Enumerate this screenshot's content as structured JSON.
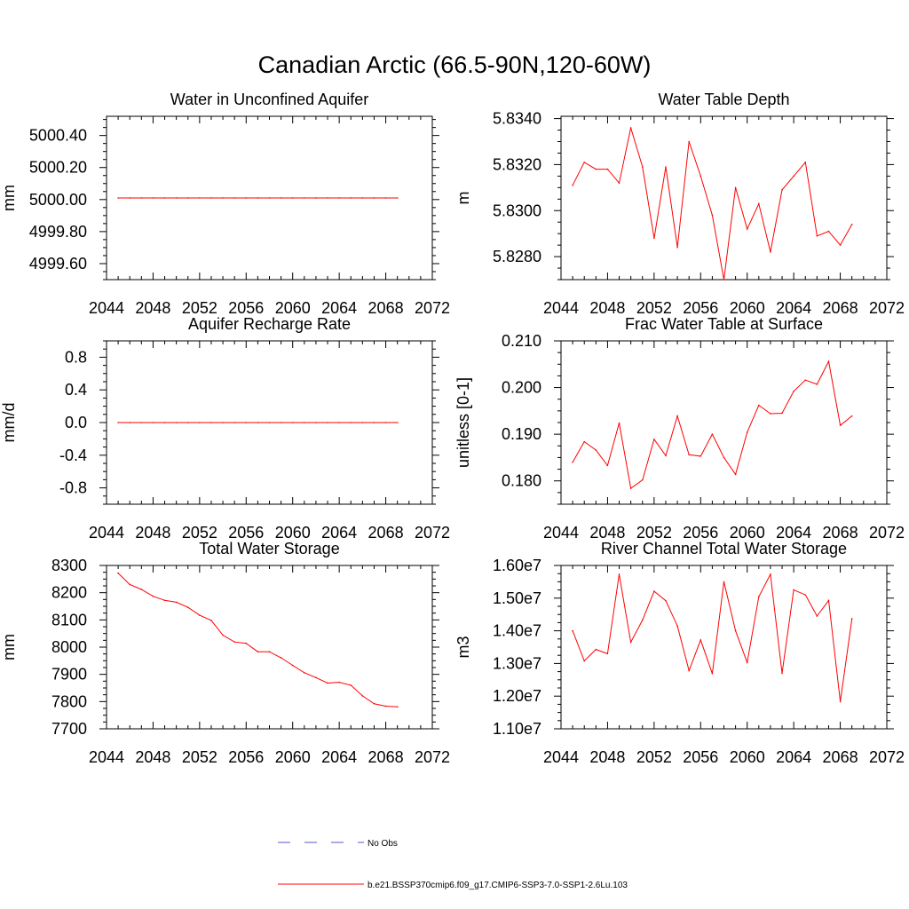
{
  "title": "Canadian Arctic (66.5-90N,120-60W)",
  "colors": {
    "series": "#ff0000",
    "obs": "#5555cc",
    "axis": "#000000"
  },
  "legend": {
    "obs_label": "No Obs",
    "model_label": "b.e21.BSSP370cmip6.f09_g17.CMIP6-SSP3-7.0-SSP1-2.6Lu.103"
  },
  "chart_data": [
    {
      "type": "line",
      "title": "Water in Unconfined Aquifer",
      "ylabel": "mm",
      "xlim": [
        2044,
        2072
      ],
      "ylim": [
        4999.5,
        5000.52
      ],
      "xticks": [
        "2044",
        "2048",
        "2052",
        "2056",
        "2060",
        "2064",
        "2068",
        "2072"
      ],
      "yticks": [
        {
          "v": 4999.6,
          "label": "4999.60"
        },
        {
          "v": 4999.8,
          "label": "4999.80"
        },
        {
          "v": 5000.0,
          "label": "5000.00"
        },
        {
          "v": 5000.2,
          "label": "5000.20"
        },
        {
          "v": 5000.4,
          "label": "5000.40"
        }
      ],
      "x": [
        2045,
        2046,
        2047,
        2048,
        2049,
        2050,
        2051,
        2052,
        2053,
        2054,
        2055,
        2056,
        2057,
        2058,
        2059,
        2060,
        2061,
        2062,
        2063,
        2064,
        2065,
        2066,
        2067,
        2068,
        2069
      ],
      "y": [
        5000.01,
        5000.01,
        5000.01,
        5000.01,
        5000.01,
        5000.01,
        5000.01,
        5000.01,
        5000.01,
        5000.01,
        5000.01,
        5000.01,
        5000.01,
        5000.01,
        5000.01,
        5000.01,
        5000.01,
        5000.01,
        5000.01,
        5000.01,
        5000.01,
        5000.01,
        5000.01,
        5000.01,
        5000.01
      ]
    },
    {
      "type": "line",
      "title": "Water Table Depth",
      "ylabel": "m",
      "xlim": [
        2044,
        2072
      ],
      "ylim": [
        5.827,
        5.8341
      ],
      "xticks": [
        "2044",
        "2048",
        "2052",
        "2056",
        "2060",
        "2064",
        "2068",
        "2072"
      ],
      "yticks": [
        {
          "v": 5.828,
          "label": "5.8280"
        },
        {
          "v": 5.83,
          "label": "5.8300"
        },
        {
          "v": 5.832,
          "label": "5.8320"
        },
        {
          "v": 5.834,
          "label": "5.8340"
        }
      ],
      "x": [
        2045,
        2046,
        2047,
        2048,
        2049,
        2050,
        2051,
        2052,
        2053,
        2054,
        2055,
        2056,
        2057,
        2058,
        2059,
        2060,
        2061,
        2062,
        2063,
        2064,
        2065,
        2066,
        2067,
        2068,
        2069
      ],
      "y": [
        5.8311,
        5.8321,
        5.8318,
        5.8318,
        5.8312,
        5.8336,
        5.8319,
        5.8288,
        5.8319,
        5.8284,
        5.833,
        5.8315,
        5.8298,
        5.827,
        5.831,
        5.8292,
        5.8303,
        5.8282,
        5.8309,
        5.8315,
        5.8321,
        5.8289,
        5.8291,
        5.8285,
        5.8294
      ]
    },
    {
      "type": "line",
      "title": "Aquifer Recharge Rate",
      "ylabel": "mm/d",
      "xlim": [
        2044,
        2072
      ],
      "ylim": [
        -1.0,
        1.0
      ],
      "xticks": [
        "2044",
        "2048",
        "2052",
        "2056",
        "2060",
        "2064",
        "2068",
        "2072"
      ],
      "yticks": [
        {
          "v": -0.8,
          "label": "-0.8"
        },
        {
          "v": -0.4,
          "label": "-0.4"
        },
        {
          "v": 0.0,
          "label": "0.0"
        },
        {
          "v": 0.4,
          "label": "0.4"
        },
        {
          "v": 0.8,
          "label": "0.8"
        }
      ],
      "x": [
        2045,
        2046,
        2047,
        2048,
        2049,
        2050,
        2051,
        2052,
        2053,
        2054,
        2055,
        2056,
        2057,
        2058,
        2059,
        2060,
        2061,
        2062,
        2063,
        2064,
        2065,
        2066,
        2067,
        2068,
        2069
      ],
      "y": [
        0,
        0,
        0,
        0,
        0,
        0,
        0,
        0,
        0,
        0,
        0,
        0,
        0,
        0,
        0,
        0,
        0,
        0,
        0,
        0,
        0,
        0,
        0,
        0,
        0
      ]
    },
    {
      "type": "line",
      "title": "Frac Water Table at Surface",
      "ylabel": "unitless [0-1]",
      "xlim": [
        2044,
        2072
      ],
      "ylim": [
        0.175,
        0.21
      ],
      "xticks": [
        "2044",
        "2048",
        "2052",
        "2056",
        "2060",
        "2064",
        "2068",
        "2072"
      ],
      "yticks": [
        {
          "v": 0.18,
          "label": "0.180"
        },
        {
          "v": 0.19,
          "label": "0.190"
        },
        {
          "v": 0.2,
          "label": "0.200"
        },
        {
          "v": 0.21,
          "label": "0.210"
        }
      ],
      "x": [
        2045,
        2046,
        2047,
        2048,
        2049,
        2050,
        2051,
        2052,
        2053,
        2054,
        2055,
        2056,
        2057,
        2058,
        2059,
        2060,
        2061,
        2062,
        2063,
        2064,
        2065,
        2066,
        2067,
        2068,
        2069
      ],
      "y": [
        0.184,
        0.1884,
        0.1866,
        0.1833,
        0.1924,
        0.1784,
        0.1802,
        0.1889,
        0.1854,
        0.1939,
        0.1856,
        0.1853,
        0.19,
        0.185,
        0.1814,
        0.1904,
        0.1962,
        0.1944,
        0.1945,
        0.1992,
        0.2016,
        0.2007,
        0.2056,
        0.1919,
        0.1939
      ]
    },
    {
      "type": "line",
      "title": "Total Water Storage",
      "ylabel": "mm",
      "xlim": [
        2044,
        2072
      ],
      "ylim": [
        7700,
        8300
      ],
      "xticks": [
        "2044",
        "2048",
        "2052",
        "2056",
        "2060",
        "2064",
        "2068",
        "2072"
      ],
      "yticks": [
        {
          "v": 7700,
          "label": "7700"
        },
        {
          "v": 7800,
          "label": "7800"
        },
        {
          "v": 7900,
          "label": "7900"
        },
        {
          "v": 8000,
          "label": "8000"
        },
        {
          "v": 8100,
          "label": "8100"
        },
        {
          "v": 8200,
          "label": "8200"
        },
        {
          "v": 8300,
          "label": "8300"
        }
      ],
      "x": [
        2045,
        2046,
        2047,
        2048,
        2049,
        2050,
        2051,
        2052,
        2053,
        2054,
        2055,
        2056,
        2057,
        2058,
        2059,
        2060,
        2061,
        2062,
        2063,
        2064,
        2065,
        2066,
        2067,
        2068,
        2069
      ],
      "y": [
        8272,
        8230,
        8212,
        8187,
        8172,
        8165,
        8146,
        8117,
        8098,
        8044,
        8019,
        8014,
        7983,
        7983,
        7961,
        7933,
        7906,
        7888,
        7868,
        7871,
        7860,
        7821,
        7792,
        7783,
        7781
      ]
    },
    {
      "type": "line",
      "title": "River Channel Total Water Storage",
      "ylabel": "m3",
      "xlim": [
        2044,
        2072
      ],
      "ylim": [
        11000000.0,
        16000000.0
      ],
      "xticks": [
        "2044",
        "2048",
        "2052",
        "2056",
        "2060",
        "2064",
        "2068",
        "2072"
      ],
      "yticks": [
        {
          "v": 11000000,
          "label": "1.10e7"
        },
        {
          "v": 12000000,
          "label": "1.20e7"
        },
        {
          "v": 13000000,
          "label": "1.30e7"
        },
        {
          "v": 14000000,
          "label": "1.40e7"
        },
        {
          "v": 15000000,
          "label": "1.50e7"
        },
        {
          "v": 16000000,
          "label": "1.60e7"
        }
      ],
      "x": [
        2045,
        2046,
        2047,
        2048,
        2049,
        2050,
        2051,
        2052,
        2053,
        2054,
        2055,
        2056,
        2057,
        2058,
        2059,
        2060,
        2061,
        2062,
        2063,
        2064,
        2065,
        2066,
        2067,
        2068,
        2069
      ],
      "y": [
        14000000,
        13080000,
        13430000,
        13300000,
        15730000,
        13650000,
        14330000,
        15210000,
        14920000,
        14150000,
        12780000,
        13720000,
        12690000,
        15500000,
        14000000,
        13030000,
        15040000,
        15730000,
        12700000,
        15250000,
        15100000,
        14450000,
        14930000,
        11830000,
        14370000
      ]
    }
  ]
}
